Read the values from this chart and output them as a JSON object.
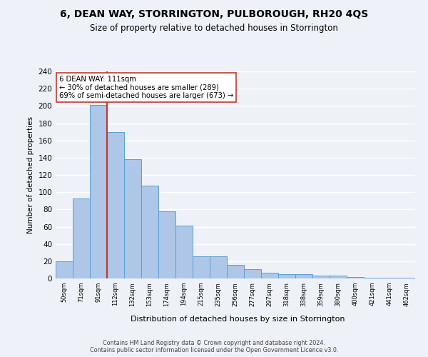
{
  "title": "6, DEAN WAY, STORRINGTON, PULBOROUGH, RH20 4QS",
  "subtitle": "Size of property relative to detached houses in Storrington",
  "xlabel": "Distribution of detached houses by size in Storrington",
  "ylabel": "Number of detached properties",
  "categories": [
    "50sqm",
    "71sqm",
    "91sqm",
    "112sqm",
    "132sqm",
    "153sqm",
    "174sqm",
    "194sqm",
    "215sqm",
    "235sqm",
    "256sqm",
    "277sqm",
    "297sqm",
    "318sqm",
    "338sqm",
    "359sqm",
    "380sqm",
    "400sqm",
    "421sqm",
    "441sqm",
    "462sqm"
  ],
  "values": [
    20,
    93,
    201,
    170,
    138,
    108,
    78,
    61,
    26,
    26,
    16,
    11,
    7,
    5,
    5,
    3,
    3,
    2,
    1,
    1,
    1
  ],
  "bar_color": "#aec6e8",
  "bar_edge_color": "#5a9fd4",
  "annotation_text_line1": "6 DEAN WAY: 111sqm",
  "annotation_text_line2": "← 30% of detached houses are smaller (289)",
  "annotation_text_line3": "69% of semi-detached houses are larger (673) →",
  "vline_color": "#c0392b",
  "annotation_box_color": "#ffffff",
  "annotation_box_edge_color": "#c0392b",
  "ylim": [
    0,
    240
  ],
  "yticks": [
    0,
    20,
    40,
    60,
    80,
    100,
    120,
    140,
    160,
    180,
    200,
    220,
    240
  ],
  "background_color": "#eef2f8",
  "grid_color": "#ffffff",
  "footer_line1": "Contains HM Land Registry data © Crown copyright and database right 2024.",
  "footer_line2": "Contains public sector information licensed under the Open Government Licence v3.0."
}
